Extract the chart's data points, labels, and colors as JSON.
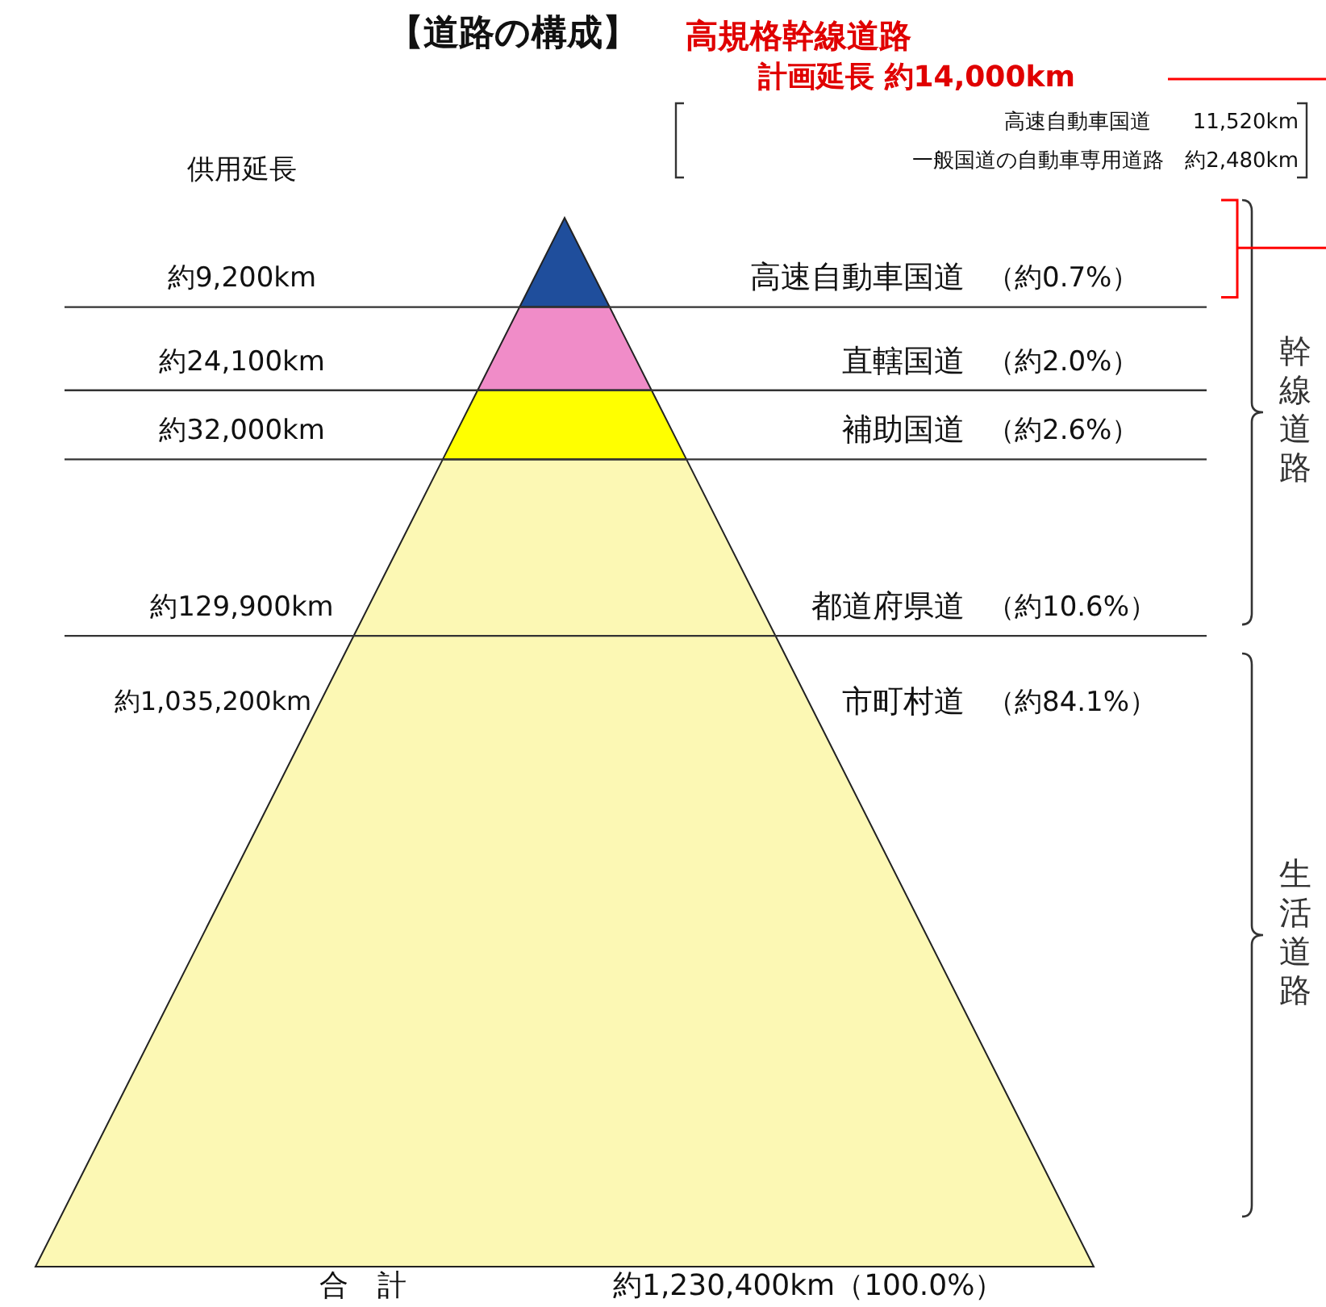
{
  "chart_data": {
    "type": "other",
    "title": "【道路の構成】",
    "ylabel": "供用延長",
    "categories": [
      "高速自動車国道",
      "直轄国道",
      "補助国道",
      "都道府県道",
      "市町村道"
    ],
    "colors": [
      "#1f4e9c",
      "#f08cc8",
      "#ffff00",
      "#fcf8b4",
      "#fcf8b4"
    ],
    "series": [
      {
        "values": [
          9200,
          24100,
          32000,
          129900,
          1035200
        ],
        "value_labels": [
          "約9,200km",
          "約24,100km",
          "約32,000km",
          "約129,900km",
          "約1,035,200km"
        ]
      },
      {
        "values": [
          0.7,
          2.0,
          2.6,
          10.6,
          84.1
        ],
        "value_labels": [
          "（約0.7%）",
          "（約2.0%）",
          "（約2.6%）",
          "（約10.6%）",
          "（約84.1%）"
        ]
      }
    ],
    "annotations": [
      "高規格幹線道路",
      "計画延長 約14,000km",
      "高速自動車国道　　11,520km",
      "一般国道の自動車専用道路　約2,480km",
      "合　計",
      "約1,230,400km（100.0%）",
      "幹線道路",
      "生活道路"
    ]
  }
}
